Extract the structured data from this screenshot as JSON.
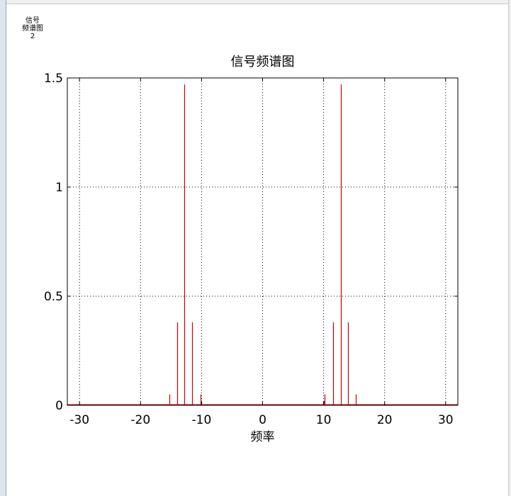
{
  "figure_label": {
    "line1": "信号",
    "line2": "频谱图",
    "line3": "2"
  },
  "colors": {
    "stem": "#cc0000",
    "axes": "#000000",
    "grid": "#000000"
  },
  "chart_data": {
    "type": "stem",
    "title": "信号频谱图",
    "xlabel": "频率",
    "ylabel": "",
    "xlim": [
      -32,
      32
    ],
    "ylim": [
      0,
      1.5
    ],
    "grid": true,
    "xticks": [
      -30,
      -20,
      -10,
      0,
      10,
      20,
      30
    ],
    "yticks": [
      0,
      0.5,
      1,
      1.5
    ],
    "xtick_labels": [
      "-30",
      "-20",
      "-10",
      "0",
      "10",
      "20",
      "30"
    ],
    "ytick_labels": [
      "0",
      "0.5",
      "1",
      "1.5"
    ],
    "x": [
      -15.3,
      -14.0,
      -12.8,
      -11.5,
      -10.2,
      -10.0,
      10.0,
      10.2,
      11.5,
      12.8,
      14.0,
      15.3
    ],
    "values": [
      0.05,
      0.38,
      1.47,
      0.38,
      0.05,
      0.02,
      0.02,
      0.05,
      0.38,
      1.47,
      0.38,
      0.05
    ]
  }
}
